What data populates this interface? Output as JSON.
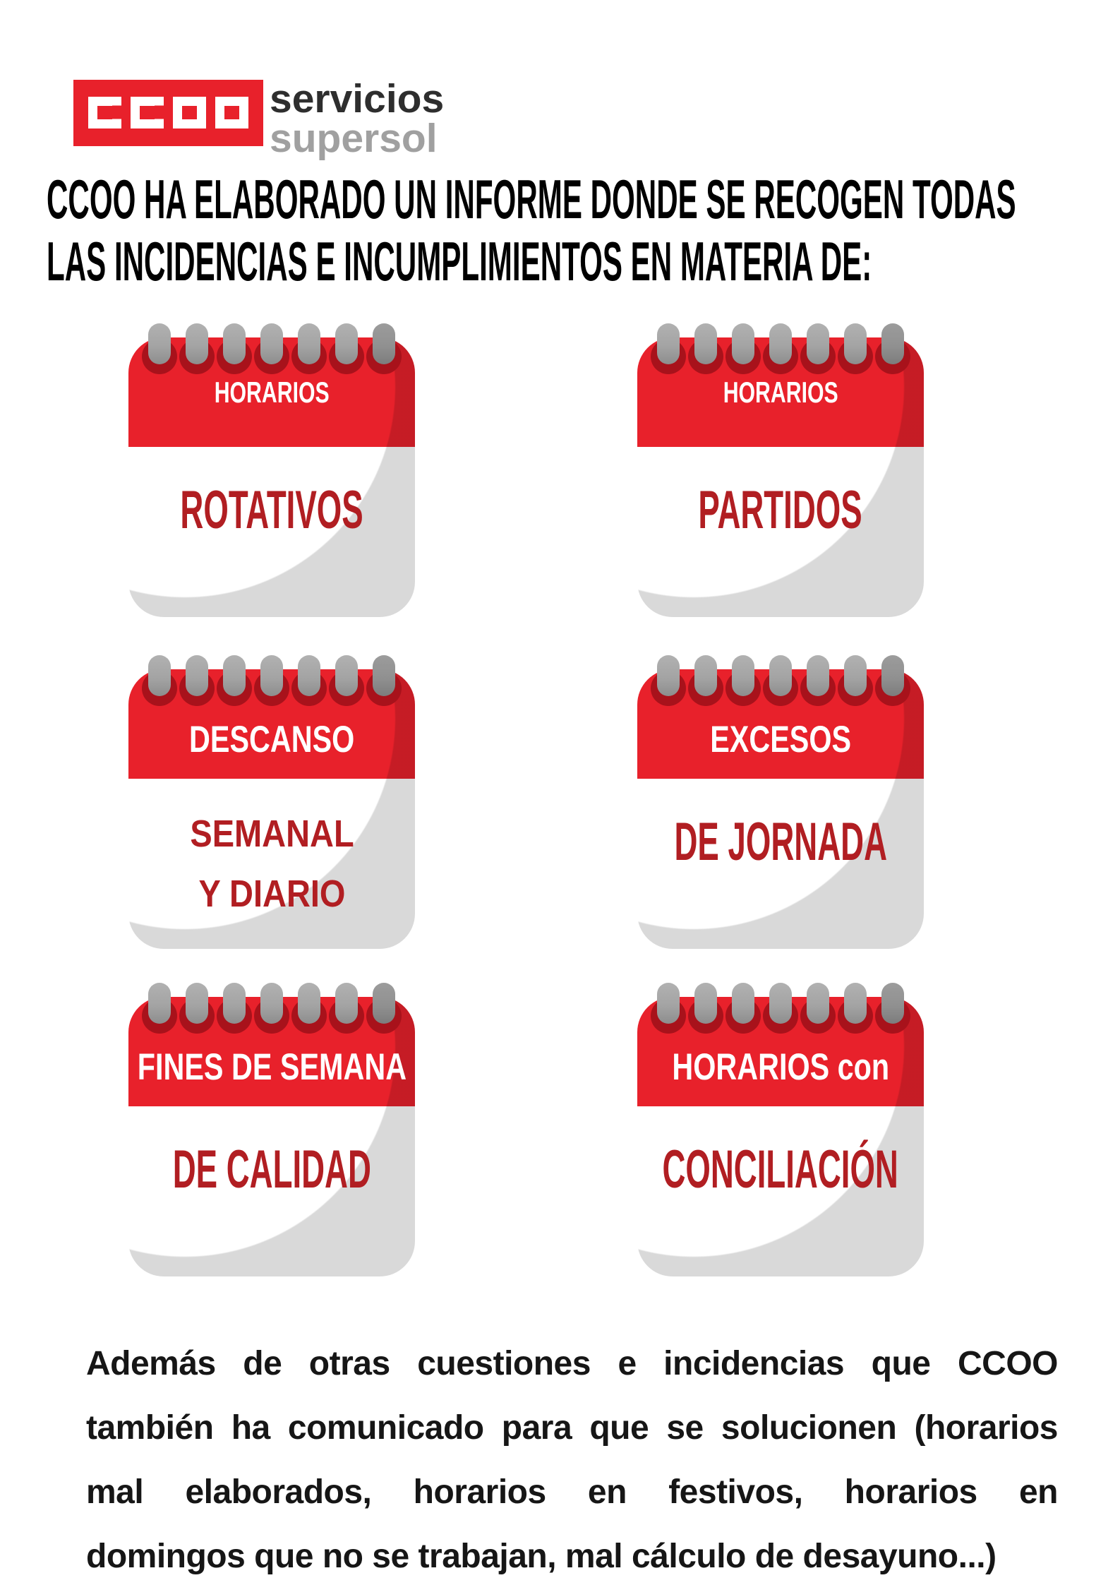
{
  "colors": {
    "red": "#e8212b",
    "dark_red": "#b11e22",
    "hole_red": "#a8121b",
    "ring_gray": "#a7a7a7",
    "corner_gray": "#d7d7d7",
    "logo_text_dark": "#2e2e2e",
    "logo_text_gray": "#a0a0a0",
    "headline_black": "#000000",
    "footer_black": "#161616"
  },
  "logo": {
    "acronym": "CCOO",
    "brand_line1": "servicios",
    "brand_line2": "supersol"
  },
  "headline": {
    "line1": "CCOO HA ELABORADO UN INFORME DONDE SE RECOGEN TODAS",
    "line2": "LAS INCIDENCIAS E INCUMPLIMIENTOS EN MATERIA DE:"
  },
  "cards": [
    {
      "header": "HORARIOS",
      "body_line1": "ROTATIVOS"
    },
    {
      "header": "HORARIOS",
      "body_line1": "PARTIDOS"
    },
    {
      "header": "DESCANSO",
      "body_line1": "SEMANAL",
      "body_line2": "Y DIARIO"
    },
    {
      "header": "EXCESOS",
      "body_line1": "DE JORNADA"
    },
    {
      "header": "FINES DE SEMANA",
      "body_line1": "DE CALIDAD"
    },
    {
      "header": "HORARIOS con",
      "body_line1": "CONCILIACIÓN"
    }
  ],
  "footer": {
    "lines": [
      "Además de otras cuestiones e incidencias que CCOO",
      "también ha comunicado para que se solucionen (horarios",
      "mal elaborados, horarios en festivos, horarios en",
      "domingos que no se trabajan, mal cálculo de desayuno...)"
    ]
  }
}
